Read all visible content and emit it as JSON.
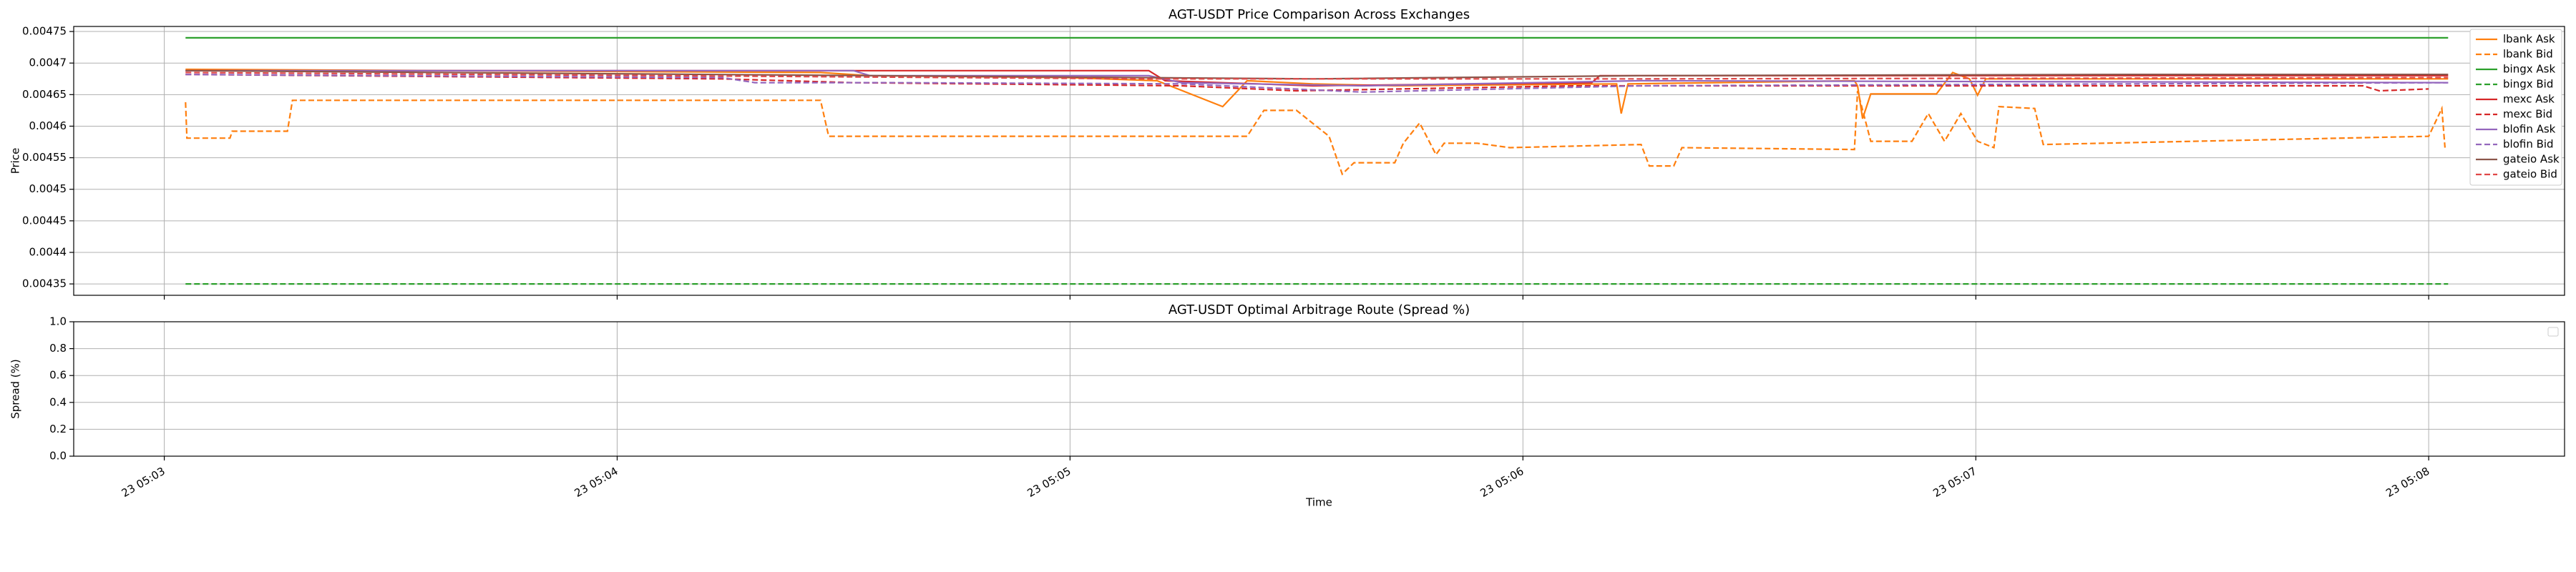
{
  "chart_data": [
    {
      "type": "line",
      "title": "AGT-USDT Price Comparison Across Exchanges",
      "ylabel": "Price",
      "xlim": [
        2.8,
        8.3
      ],
      "xticks": [
        3,
        4,
        5,
        6,
        7,
        8
      ],
      "ylim": [
        0.004332,
        0.004758
      ],
      "yticks": [
        0.00435,
        0.0044,
        0.00445,
        0.0045,
        0.00455,
        0.0046,
        0.00465,
        0.0047,
        0.00475
      ],
      "grid": true,
      "legend": "upper right",
      "series": [
        {
          "name": "lbank Ask",
          "color": "#ff7f0e",
          "style": "solid",
          "x": [
            3.047,
            4.449,
            4.558,
            4.993,
            5.192,
            5.337,
            5.391,
            5.536,
            5.717,
            6.207,
            6.217,
            6.232,
            6.732,
            6.739,
            6.75,
            6.768,
            6.913,
            6.949,
            6.986,
            7.004,
            7.022,
            8.043
          ],
          "values": [
            0.00469,
            0.004685,
            0.00468,
            0.004677,
            0.004672,
            0.004631,
            0.004672,
            0.004667,
            0.004664,
            0.004667,
            0.00462,
            0.004667,
            0.004672,
            0.004664,
            0.004612,
            0.004651,
            0.004651,
            0.004685,
            0.004675,
            0.004649,
            0.004675,
            0.004675
          ]
        },
        {
          "name": "lbank Bid",
          "color": "#ff7f0e",
          "style": "dashed",
          "x": [
            3.047,
            3.05,
            3.145,
            3.15,
            3.272,
            3.283,
            4.449,
            4.467,
            5.391,
            5.428,
            5.5,
            5.572,
            5.601,
            5.627,
            5.717,
            5.736,
            5.772,
            5.808,
            5.826,
            5.899,
            5.971,
            6.261,
            6.279,
            6.333,
            6.351,
            6.732,
            6.739,
            6.768,
            6.859,
            6.895,
            6.931,
            6.967,
            7.004,
            7.04,
            7.051,
            7.13,
            7.149,
            8.0,
            8.029,
            8.036
          ],
          "values": [
            0.004638,
            0.004581,
            0.004581,
            0.004592,
            0.004592,
            0.004641,
            0.004641,
            0.004584,
            0.004584,
            0.004625,
            0.004625,
            0.004584,
            0.004524,
            0.004542,
            0.004542,
            0.004573,
            0.004605,
            0.004555,
            0.004573,
            0.004573,
            0.004566,
            0.004571,
            0.004537,
            0.004537,
            0.004566,
            0.004563,
            0.004656,
            0.004576,
            0.004576,
            0.00462,
            0.004576,
            0.00462,
            0.004576,
            0.004566,
            0.004631,
            0.004628,
            0.004571,
            0.004584,
            0.004628,
            0.004566
          ]
        },
        {
          "name": "bingx Ask",
          "color": "#2ca02c",
          "style": "solid",
          "x": [
            3.047,
            8.043
          ],
          "values": [
            0.00474,
            0.00474
          ]
        },
        {
          "name": "bingx Bid",
          "color": "#2ca02c",
          "style": "dashed",
          "x": [
            3.047,
            8.043
          ],
          "values": [
            0.00435,
            0.00435
          ]
        },
        {
          "name": "mexc Ask",
          "color": "#d62728",
          "style": "solid",
          "x": [
            3.047,
            5.174,
            5.21,
            5.536,
            6.152,
            6.17,
            8.043
          ],
          "values": [
            0.004688,
            0.004688,
            0.004672,
            0.004664,
            0.004669,
            0.00468,
            0.00468
          ]
        },
        {
          "name": "mexc Bid",
          "color": "#d62728",
          "style": "dashed",
          "x": [
            3.047,
            4.232,
            4.522,
            5.246,
            5.5,
            6.116,
            7.855,
            7.891,
            8.0
          ],
          "values": [
            0.004682,
            0.004675,
            0.004669,
            0.004664,
            0.004656,
            0.004664,
            0.004664,
            0.004656,
            0.004659
          ]
        },
        {
          "name": "blofin Ask",
          "color": "#9467bd",
          "style": "solid",
          "x": [
            3.047,
            4.522,
            4.558,
            5.174,
            5.246,
            5.645,
            6.261,
            8.043
          ],
          "values": [
            0.004688,
            0.004688,
            0.00468,
            0.00468,
            0.004669,
            0.004664,
            0.004672,
            0.004669
          ]
        },
        {
          "name": "blofin Bid",
          "color": "#9467bd",
          "style": "dashed",
          "x": [
            3.047,
            4.232,
            4.304,
            4.594,
            5.246,
            5.645,
            6.261,
            8.043
          ],
          "values": [
            0.004682,
            0.004677,
            0.004669,
            0.004669,
            0.004667,
            0.004654,
            0.004664,
            0.004669
          ]
        },
        {
          "name": "gateio Ask",
          "color": "#8c564b",
          "style": "solid",
          "x": [
            3.047,
            5.536,
            6.261,
            7.348,
            8.043
          ],
          "values": [
            0.004688,
            0.004675,
            0.00468,
            0.004682,
            0.004682
          ]
        },
        {
          "name": "gateio Bid",
          "color": "#e04848",
          "style": "dashed",
          "x": [
            3.047,
            5.174,
            6.261,
            8.043
          ],
          "values": [
            0.004685,
            0.004675,
            0.004675,
            0.004677
          ]
        }
      ]
    },
    {
      "type": "line",
      "title": "AGT-USDT Optimal Arbitrage Route (Spread %)",
      "ylabel": "Spread (%)",
      "xlabel": "Time",
      "xlim": [
        2.8,
        8.3
      ],
      "xticks": [
        {
          "value": 3,
          "label": "23 05:03"
        },
        {
          "value": 4,
          "label": "23 05:04"
        },
        {
          "value": 5,
          "label": "23 05:05"
        },
        {
          "value": 6,
          "label": "23 05:06"
        },
        {
          "value": 7,
          "label": "23 05:07"
        },
        {
          "value": 8,
          "label": "23 05:08"
        }
      ],
      "ylim": [
        0,
        1
      ],
      "yticks": [
        {
          "value": 0,
          "label": "0.0"
        },
        {
          "value": 0.2,
          "label": "0.2"
        },
        {
          "value": 0.4,
          "label": "0.4"
        },
        {
          "value": 0.6,
          "label": "0.6"
        },
        {
          "value": 0.8,
          "label": "0.8"
        },
        {
          "value": 1,
          "label": "1.0"
        }
      ],
      "grid": true,
      "series": []
    }
  ]
}
